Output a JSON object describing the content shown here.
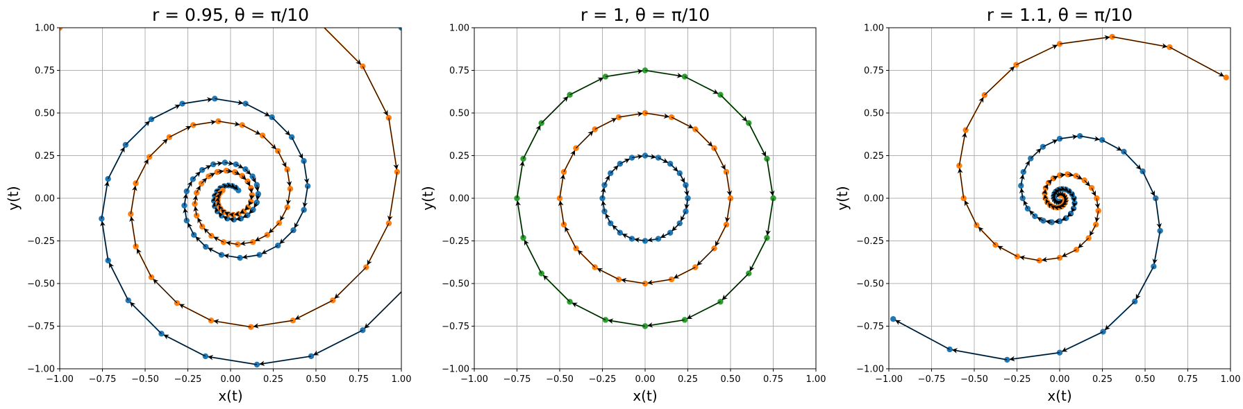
{
  "figure": {
    "background": "#ffffff"
  },
  "chart_data": [
    {
      "type": "line",
      "title": "r = 0.95, θ = π/10",
      "xlabel": "x(t)",
      "ylabel": "y(t)",
      "xlim": [
        -1.0,
        1.0
      ],
      "ylim": [
        -1.0,
        1.0
      ],
      "xticks": [
        "−1.00",
        "−0.75",
        "−0.50",
        "−0.25",
        "0.00",
        "0.25",
        "0.50",
        "0.75",
        "1.00"
      ],
      "yticks": [
        "−1.00",
        "−0.75",
        "−0.50",
        "−0.25",
        "0.00",
        "0.25",
        "0.50",
        "0.75",
        "1.00"
      ],
      "grid": true,
      "series": [
        {
          "color": "#1f77b4",
          "spiral": {
            "r": 0.95,
            "theta_deg": 18,
            "amp0": 1.414,
            "phase0_deg": 45,
            "steps": 60
          }
        },
        {
          "color": "#ff7f0e",
          "spiral": {
            "r": 0.95,
            "theta_deg": 18,
            "amp0": 1.414,
            "phase0_deg": 135,
            "steps": 60
          }
        }
      ]
    },
    {
      "type": "line",
      "title": "r = 1, θ = π/10",
      "xlabel": "x(t)",
      "ylabel": "y(t)",
      "xlim": [
        -1.0,
        1.0
      ],
      "ylim": [
        -1.0,
        1.0
      ],
      "xticks": [
        "−1.00",
        "−0.75",
        "−0.50",
        "−0.25",
        "0.00",
        "0.25",
        "0.50",
        "0.75",
        "1.00"
      ],
      "yticks": [
        "−1.00",
        "−0.75",
        "−0.50",
        "−0.25",
        "0.00",
        "0.25",
        "0.50",
        "0.75",
        "1.00"
      ],
      "grid": true,
      "series": [
        {
          "color": "#1f77b4",
          "spiral": {
            "r": 1.0,
            "theta_deg": 18,
            "amp0": 0.25,
            "phase0_deg": 0,
            "steps": 20
          }
        },
        {
          "color": "#ff7f0e",
          "spiral": {
            "r": 1.0,
            "theta_deg": 18,
            "amp0": 0.5,
            "phase0_deg": 0,
            "steps": 20
          }
        },
        {
          "color": "#2ca02c",
          "spiral": {
            "r": 1.0,
            "theta_deg": 18,
            "amp0": 0.75,
            "phase0_deg": 0,
            "steps": 20
          }
        }
      ]
    },
    {
      "type": "line",
      "title": "r = 1.1, θ = π/10",
      "xlabel": "x(t)",
      "ylabel": "y(t)",
      "xlim": [
        -1.0,
        1.0
      ],
      "ylim": [
        -1.0,
        1.0
      ],
      "xticks": [
        "−1.00",
        "−0.75",
        "−0.50",
        "−0.25",
        "0.00",
        "0.25",
        "0.50",
        "0.75",
        "1.00"
      ],
      "yticks": [
        "−1.00",
        "−0.75",
        "−0.50",
        "−0.25",
        "0.00",
        "0.25",
        "0.50",
        "0.75",
        "1.00"
      ],
      "grid": true,
      "series": [
        {
          "color": "#1f77b4",
          "spiral": {
            "r": 1.1,
            "theta_deg": 18,
            "amp0": 0.02,
            "phase0_deg": -90,
            "steps": 43
          }
        },
        {
          "color": "#ff7f0e",
          "spiral": {
            "r": 1.1,
            "theta_deg": 18,
            "amp0": 0.02,
            "phase0_deg": 90,
            "steps": 43
          }
        }
      ]
    }
  ]
}
